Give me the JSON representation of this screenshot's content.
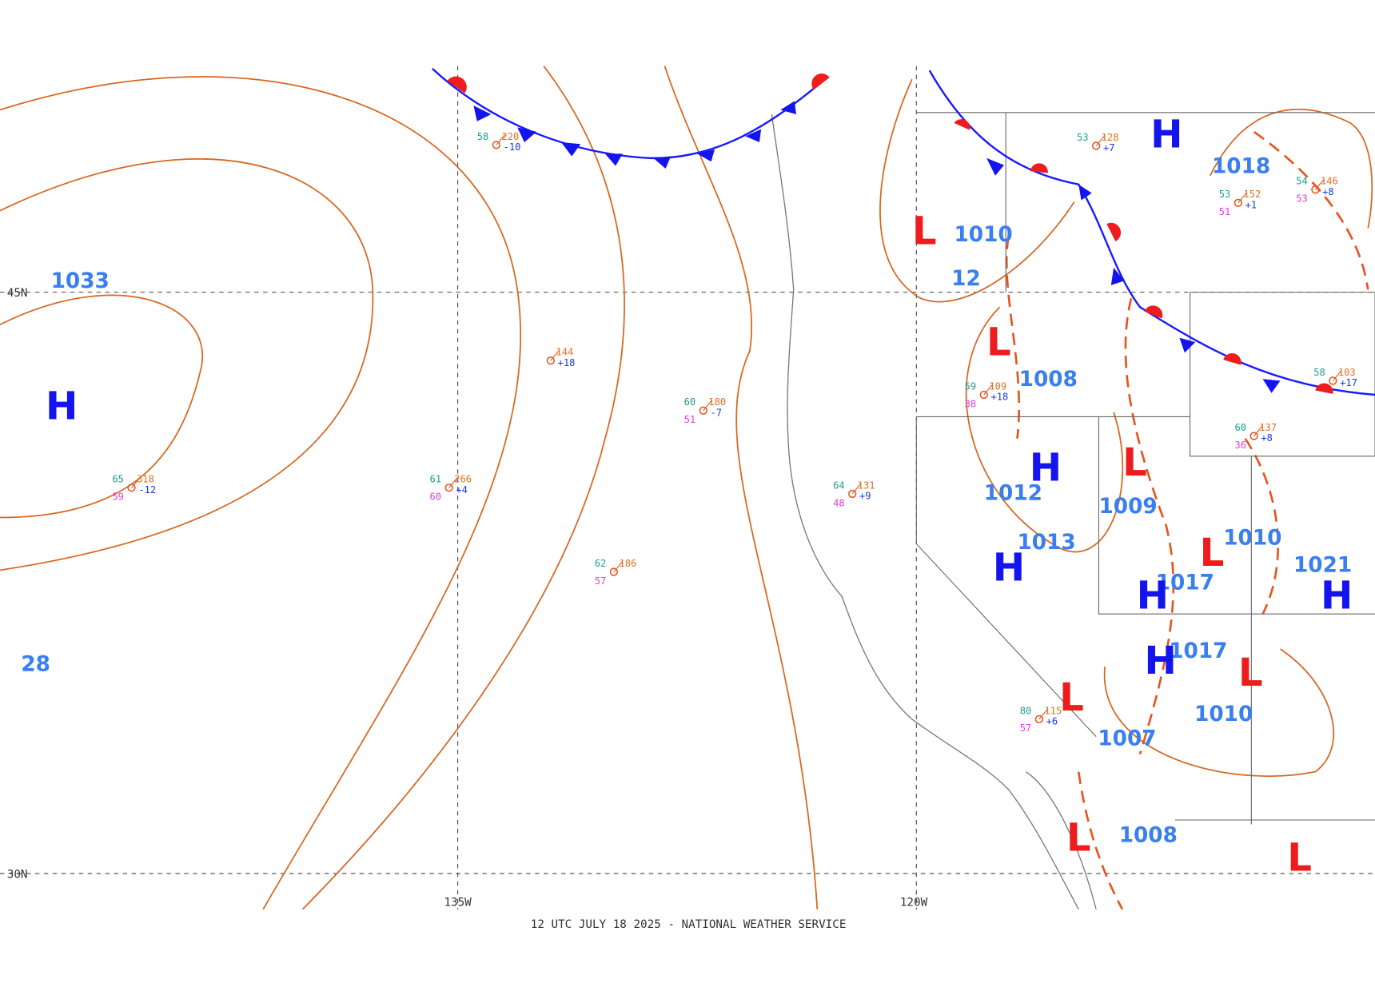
{
  "map": {
    "lat_labels": [
      "45N",
      "30N"
    ],
    "lon_labels": [
      "135W",
      "120W"
    ],
    "footer": "12 UTC JULY 18 2025 - NATIONAL WEATHER SERVICE"
  },
  "isobar_labels": [
    "1033",
    "28",
    "1010",
    "1008",
    "1012",
    "1009",
    "1013",
    "1017",
    "1017",
    "1018",
    "1021",
    "1010",
    "1010",
    "1007",
    "1008",
    "12"
  ],
  "systems": [
    "H",
    "H",
    "H",
    "H",
    "H",
    "H",
    "H",
    "L",
    "L",
    "L",
    "L",
    "L",
    "L",
    "L",
    "L"
  ],
  "stations": [
    {
      "temp": "65",
      "pressure": "318",
      "dew": "59",
      "tendency": "-12"
    },
    {
      "temp": "61",
      "pressure": "266",
      "dew": "60",
      "tendency": "+4"
    },
    {
      "temp": "62",
      "pressure": "186",
      "dew": "57"
    },
    {
      "temp": "60",
      "pressure": "180",
      "dew": "51",
      "tendency": "-7"
    },
    {
      "temp": "58",
      "pressure": "220",
      "tendency": "-10"
    },
    {
      "pressure": "144",
      "tendency": "+18"
    },
    {
      "temp": "53",
      "pressure": "128",
      "tendency": "+7"
    },
    {
      "temp": "54",
      "pressure": "146",
      "dew": "53",
      "tendency": "+8"
    },
    {
      "temp": "58",
      "pressure": "103",
      "tendency": "+17"
    },
    {
      "temp": "60",
      "pressure": "137",
      "dew": "36",
      "tendency": "+8"
    },
    {
      "temp": "80",
      "pressure": "115",
      "dew": "57",
      "tendency": "+6"
    },
    {
      "temp": "53",
      "pressure": "152",
      "dew": "51",
      "tendency": "+1"
    },
    {
      "temp": "59",
      "pressure": "109",
      "dew": "38",
      "tendency": "+18"
    },
    {
      "temp": "64",
      "pressure": "131",
      "dew": "48",
      "tendency": "+9"
    }
  ]
}
